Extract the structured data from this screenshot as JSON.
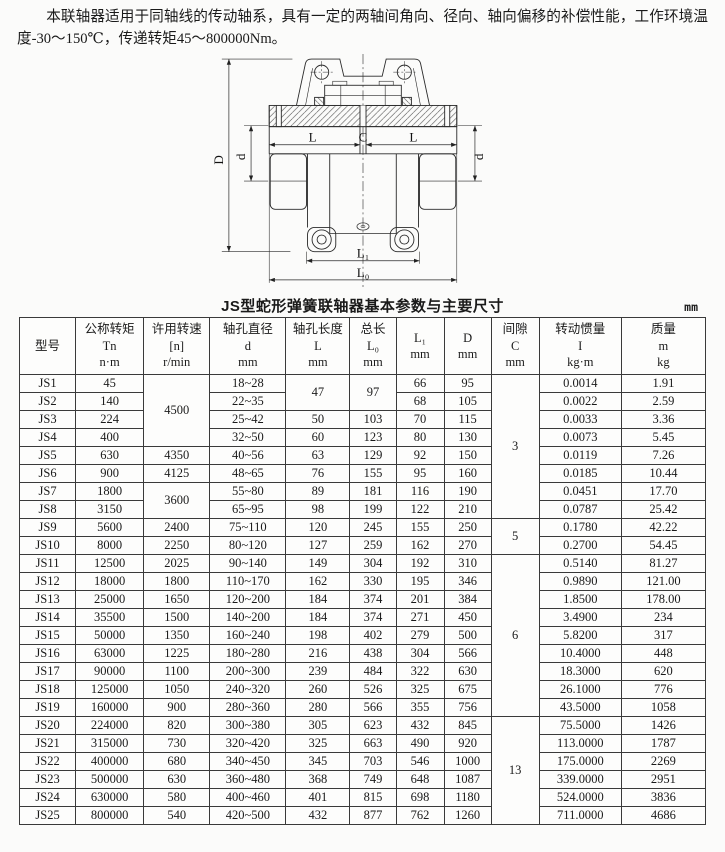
{
  "intro": {
    "text": "本联轴器适用于同轴线的传动轴系，具有一定的两轴间角向、径向、轴向偏移的补偿性能，工作环境温度-30～150℃，传递转矩45～800000Nm。"
  },
  "diagram": {
    "description": "JS serpentine spring coupling sectional drawing",
    "labels": {
      "D": "D",
      "d": "d",
      "L": "L",
      "C": "C",
      "L1": "L₁",
      "L0": "L₀"
    }
  },
  "table": {
    "title": "JS型蛇形弹簧联轴器基本参数与主要尺寸",
    "unit_note": "mm",
    "headers": [
      {
        "lines": [
          "型号"
        ]
      },
      {
        "lines": [
          "公称转矩",
          "Tn",
          "n·m"
        ]
      },
      {
        "lines": [
          "许用转速",
          "[n]",
          "r/min"
        ]
      },
      {
        "lines": [
          "轴孔直径",
          "d",
          "mm"
        ]
      },
      {
        "lines": [
          "轴孔长度",
          "L",
          "mm"
        ]
      },
      {
        "lines": [
          "总长",
          "L₀",
          "mm"
        ]
      },
      {
        "lines": [
          "L₁",
          "mm"
        ]
      },
      {
        "lines": [
          "D",
          "mm"
        ]
      },
      {
        "lines": [
          "间隙",
          "C",
          "mm"
        ]
      },
      {
        "lines": [
          "转动惯量",
          "I",
          "kg·m"
        ]
      },
      {
        "lines": [
          "质量",
          "m",
          "kg"
        ]
      }
    ],
    "rows": [
      [
        "JS1",
        "45",
        {
          "v": "4500",
          "rs": 4
        },
        "18~28",
        {
          "v": "47",
          "rs": 2
        },
        {
          "v": "97",
          "rs": 2
        },
        "66",
        "95",
        {
          "v": "3",
          "rs": 8
        },
        "0.0014",
        "1.91"
      ],
      [
        "JS2",
        "140",
        null,
        "22~35",
        null,
        null,
        "68",
        "105",
        null,
        "0.0022",
        "2.59"
      ],
      [
        "JS3",
        "224",
        null,
        "25~42",
        "50",
        "103",
        "70",
        "115",
        null,
        "0.0033",
        "3.36"
      ],
      [
        "JS4",
        "400",
        null,
        "32~50",
        "60",
        "123",
        "80",
        "130",
        null,
        "0.0073",
        "5.45"
      ],
      [
        "JS5",
        "630",
        "4350",
        "40~56",
        "63",
        "129",
        "92",
        "150",
        null,
        "0.0119",
        "7.26"
      ],
      [
        "JS6",
        "900",
        "4125",
        "48~65",
        "76",
        "155",
        "95",
        "160",
        null,
        "0.0185",
        "10.44"
      ],
      [
        "JS7",
        "1800",
        {
          "v": "3600",
          "rs": 2
        },
        "55~80",
        "89",
        "181",
        "116",
        "190",
        null,
        "0.0451",
        "17.70"
      ],
      [
        "JS8",
        "3150",
        null,
        "65~95",
        "98",
        "199",
        "122",
        "210",
        null,
        "0.0787",
        "25.42"
      ],
      [
        "JS9",
        "5600",
        "2400",
        "75~110",
        "120",
        "245",
        "155",
        "250",
        {
          "v": "5",
          "rs": 2
        },
        "0.1780",
        "42.22"
      ],
      [
        "JS10",
        "8000",
        "2250",
        "80~120",
        "127",
        "259",
        "162",
        "270",
        null,
        "0.2700",
        "54.45"
      ],
      [
        "JS11",
        "12500",
        "2025",
        "90~140",
        "149",
        "304",
        "192",
        "310",
        {
          "v": "6",
          "rs": 9
        },
        "0.5140",
        "81.27"
      ],
      [
        "JS12",
        "18000",
        "1800",
        "110~170",
        "162",
        "330",
        "195",
        "346",
        null,
        "0.9890",
        "121.00"
      ],
      [
        "JS13",
        "25000",
        "1650",
        "120~200",
        "184",
        "374",
        "201",
        "384",
        null,
        "1.8500",
        "178.00"
      ],
      [
        "JS14",
        "35500",
        "1500",
        "140~200",
        "184",
        "374",
        "271",
        "450",
        null,
        "3.4900",
        "234"
      ],
      [
        "JS15",
        "50000",
        "1350",
        "160~240",
        "198",
        "402",
        "279",
        "500",
        null,
        "5.8200",
        "317"
      ],
      [
        "JS16",
        "63000",
        "1225",
        "180~280",
        "216",
        "438",
        "304",
        "566",
        null,
        "10.4000",
        "448"
      ],
      [
        "JS17",
        "90000",
        "1100",
        "200~300",
        "239",
        "484",
        "322",
        "630",
        null,
        "18.3000",
        "620"
      ],
      [
        "JS18",
        "125000",
        "1050",
        "240~320",
        "260",
        "526",
        "325",
        "675",
        null,
        "26.1000",
        "776"
      ],
      [
        "JS19",
        "160000",
        "900",
        "280~360",
        "280",
        "566",
        "355",
        "756",
        null,
        "43.5000",
        "1058"
      ],
      [
        "JS20",
        "224000",
        "820",
        "300~380",
        "305",
        "623",
        "432",
        "845",
        {
          "v": "13",
          "rs": 6
        },
        "75.5000",
        "1426"
      ],
      [
        "JS21",
        "315000",
        "730",
        "320~420",
        "325",
        "663",
        "490",
        "920",
        null,
        "113.0000",
        "1787"
      ],
      [
        "JS22",
        "400000",
        "680",
        "340~450",
        "345",
        "703",
        "546",
        "1000",
        null,
        "175.0000",
        "2269"
      ],
      [
        "JS23",
        "500000",
        "630",
        "360~480",
        "368",
        "749",
        "648",
        "1087",
        null,
        "339.0000",
        "2951"
      ],
      [
        "JS24",
        "630000",
        "580",
        "400~460",
        "401",
        "815",
        "698",
        "1180",
        null,
        "524.0000",
        "3836"
      ],
      [
        "JS25",
        "800000",
        "540",
        "420~500",
        "432",
        "877",
        "762",
        "1260",
        null,
        "711.0000",
        "4686"
      ]
    ]
  }
}
